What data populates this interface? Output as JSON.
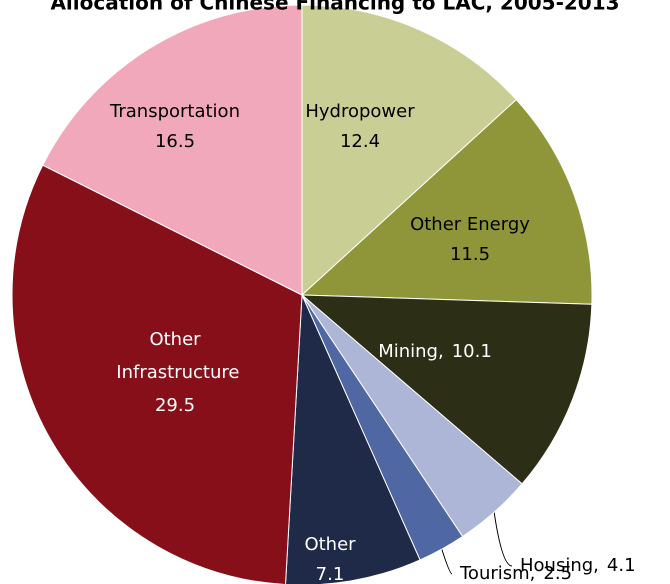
{
  "chart_data": {
    "type": "pie",
    "title": "Allocation of Chinese Financing to LAC, 2005-2013",
    "categories": [
      "Hydropower",
      "Other Energy",
      "Mining,",
      "Housing,",
      "Tourism,",
      "Other",
      "Other Infrastructure",
      "Transportation"
    ],
    "values": [
      12.4,
      11.5,
      10.1,
      4.1,
      2.5,
      7.1,
      29.5,
      16.5
    ],
    "colors": [
      "#c9cf94",
      "#8f9639",
      "#2c2e16",
      "#adb6d6",
      "#4f67a3",
      "#1f2a48",
      "#870f1a",
      "#f2a8bb"
    ]
  }
}
